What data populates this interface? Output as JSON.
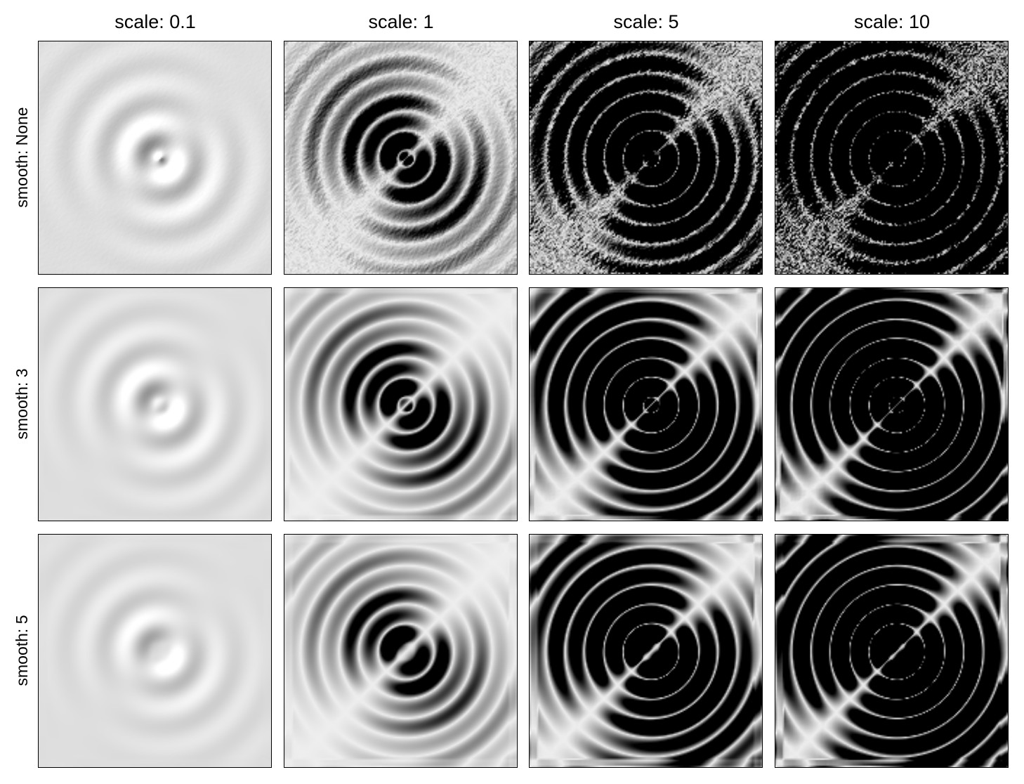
{
  "chart_data": {
    "type": "heatmap",
    "colormap": "gray",
    "layout": "3x4 image grid",
    "column_titles": [
      "scale: 0.1",
      "scale: 1",
      "scale: 5",
      "scale: 10"
    ],
    "row_labels": [
      "smooth: None",
      "smooth: 3",
      "smooth: 5"
    ],
    "scale_values": [
      0.1,
      1,
      5,
      10
    ],
    "smooth_values": [
      null,
      3,
      5
    ],
    "panels": [
      {
        "row": 0,
        "col": 0,
        "scale": 0.1,
        "smooth": null,
        "title": "scale: 0.1 / smooth: None"
      },
      {
        "row": 0,
        "col": 1,
        "scale": 1,
        "smooth": null,
        "title": "scale: 1 / smooth: None"
      },
      {
        "row": 0,
        "col": 2,
        "scale": 5,
        "smooth": null,
        "title": "scale: 5 / smooth: None"
      },
      {
        "row": 0,
        "col": 3,
        "scale": 10,
        "smooth": null,
        "title": "scale: 10 / smooth: None"
      },
      {
        "row": 1,
        "col": 0,
        "scale": 0.1,
        "smooth": 3,
        "title": "scale: 0.1 / smooth: 3"
      },
      {
        "row": 1,
        "col": 1,
        "scale": 1,
        "smooth": 3,
        "title": "scale: 1 / smooth: 3"
      },
      {
        "row": 1,
        "col": 2,
        "scale": 5,
        "smooth": 3,
        "title": "scale: 5 / smooth: 3"
      },
      {
        "row": 1,
        "col": 3,
        "scale": 10,
        "smooth": 3,
        "title": "scale: 10 / smooth: 3"
      },
      {
        "row": 2,
        "col": 0,
        "scale": 0.1,
        "smooth": 5,
        "title": "scale: 0.1 / smooth: 5"
      },
      {
        "row": 2,
        "col": 1,
        "scale": 1,
        "smooth": 5,
        "title": "scale: 1 / smooth: 5"
      },
      {
        "row": 2,
        "col": 2,
        "scale": 5,
        "smooth": 5,
        "title": "scale: 5 / smooth: 5"
      },
      {
        "row": 2,
        "col": 3,
        "scale": 10,
        "smooth": 5,
        "title": "scale: 10 / smooth: 5"
      }
    ]
  }
}
